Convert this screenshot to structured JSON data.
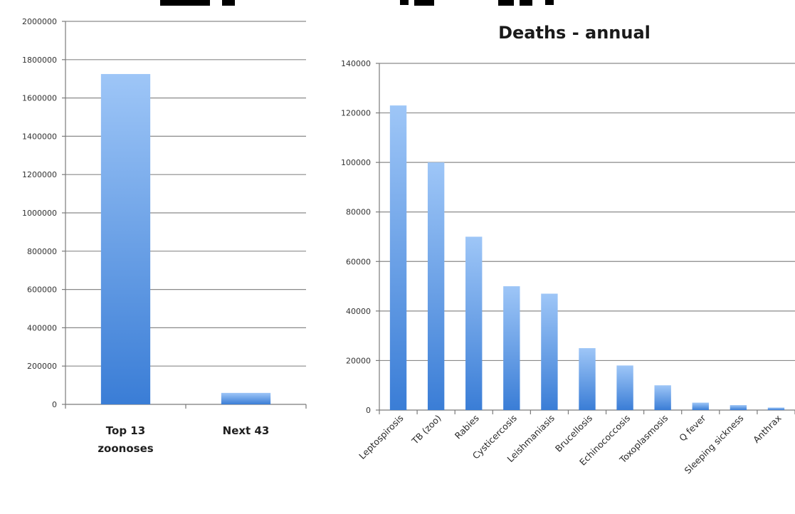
{
  "chart_data": [
    {
      "type": "bar",
      "title": "",
      "categories": [
        "Top 13 zoonoses",
        "Next 43"
      ],
      "category_lines": [
        [
          "Top 13",
          "zoonoses"
        ],
        [
          "Next 43"
        ]
      ],
      "values": [
        1725000,
        60000
      ],
      "ylim": [
        0,
        2000000
      ],
      "yticks": [
        "0",
        "200000",
        "400000",
        "600000",
        "800000",
        "1000000",
        "1200000",
        "1400000",
        "1600000",
        "1800000",
        "2000000"
      ],
      "grid": true,
      "legend": "none"
    },
    {
      "type": "bar",
      "title": "Deaths - annual",
      "categories": [
        "Leptospirosis",
        "TB (zoo)",
        "Rabies",
        "Cysticercosis",
        "Leishmaniasis",
        "Brucellosis",
        "Echinococcosis",
        "Toxoplasmosis",
        "Q fever",
        "Sleeping sickness",
        "Anthrax"
      ],
      "values": [
        123000,
        100000,
        70000,
        50000,
        47000,
        25000,
        18000,
        10000,
        3000,
        2000,
        1000
      ],
      "ylim": [
        0,
        140000
      ],
      "yticks": [
        "0",
        "20000",
        "40000",
        "60000",
        "80000",
        "100000",
        "120000",
        "140000"
      ],
      "grid": true,
      "legend": "none"
    }
  ],
  "colors": {
    "bar_top": "#9ec6f7",
    "bar_bottom": "#3a7dd6",
    "grid": "#8a8a8a"
  }
}
